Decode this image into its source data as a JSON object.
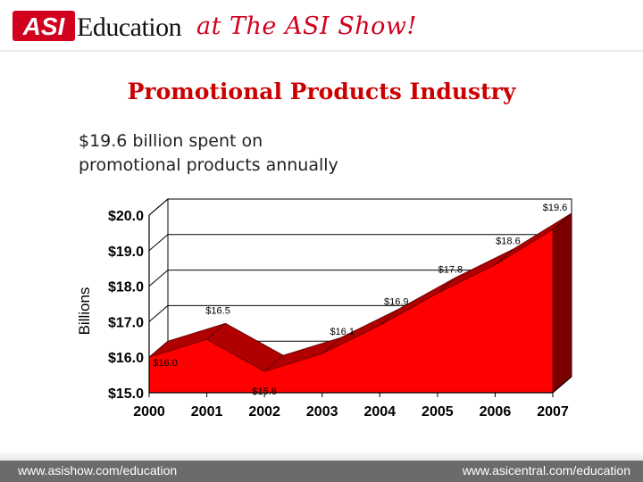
{
  "header": {
    "logo_text": "ASI",
    "brand": "Education",
    "tagline": "at The ASI Show!"
  },
  "slide": {
    "title": "Promotional Products Industry",
    "subtitle_line1": "$19.6 billion spent on",
    "subtitle_line2": "promotional products annually"
  },
  "footer": {
    "left_url": "www.asishow.com/education",
    "right_url": "www.asicentral.com/education"
  },
  "colors": {
    "accent_red": "#cc0000",
    "area_front": "#ff0000",
    "area_top": "#b00000",
    "area_side": "#7a0000",
    "footer_bg": "#6b6b6b"
  },
  "chart_data": {
    "type": "area",
    "categories": [
      "2000",
      "2001",
      "2002",
      "2003",
      "2004",
      "2005",
      "2006",
      "2007"
    ],
    "values": [
      16.0,
      16.5,
      15.6,
      16.1,
      16.9,
      17.8,
      18.6,
      19.6
    ],
    "data_labels": [
      "$16.0",
      "$16.5",
      "$15.6",
      "$16.1",
      "$16.9",
      "$17.8",
      "$18.6",
      "$19.6"
    ],
    "ylabel": "Billions",
    "ylim": [
      15.0,
      20.0
    ],
    "yticks": [
      "$15.0",
      "$16.0",
      "$17.0",
      "$18.0",
      "$19.0",
      "$20.0"
    ],
    "style": "3d",
    "grid": true
  }
}
